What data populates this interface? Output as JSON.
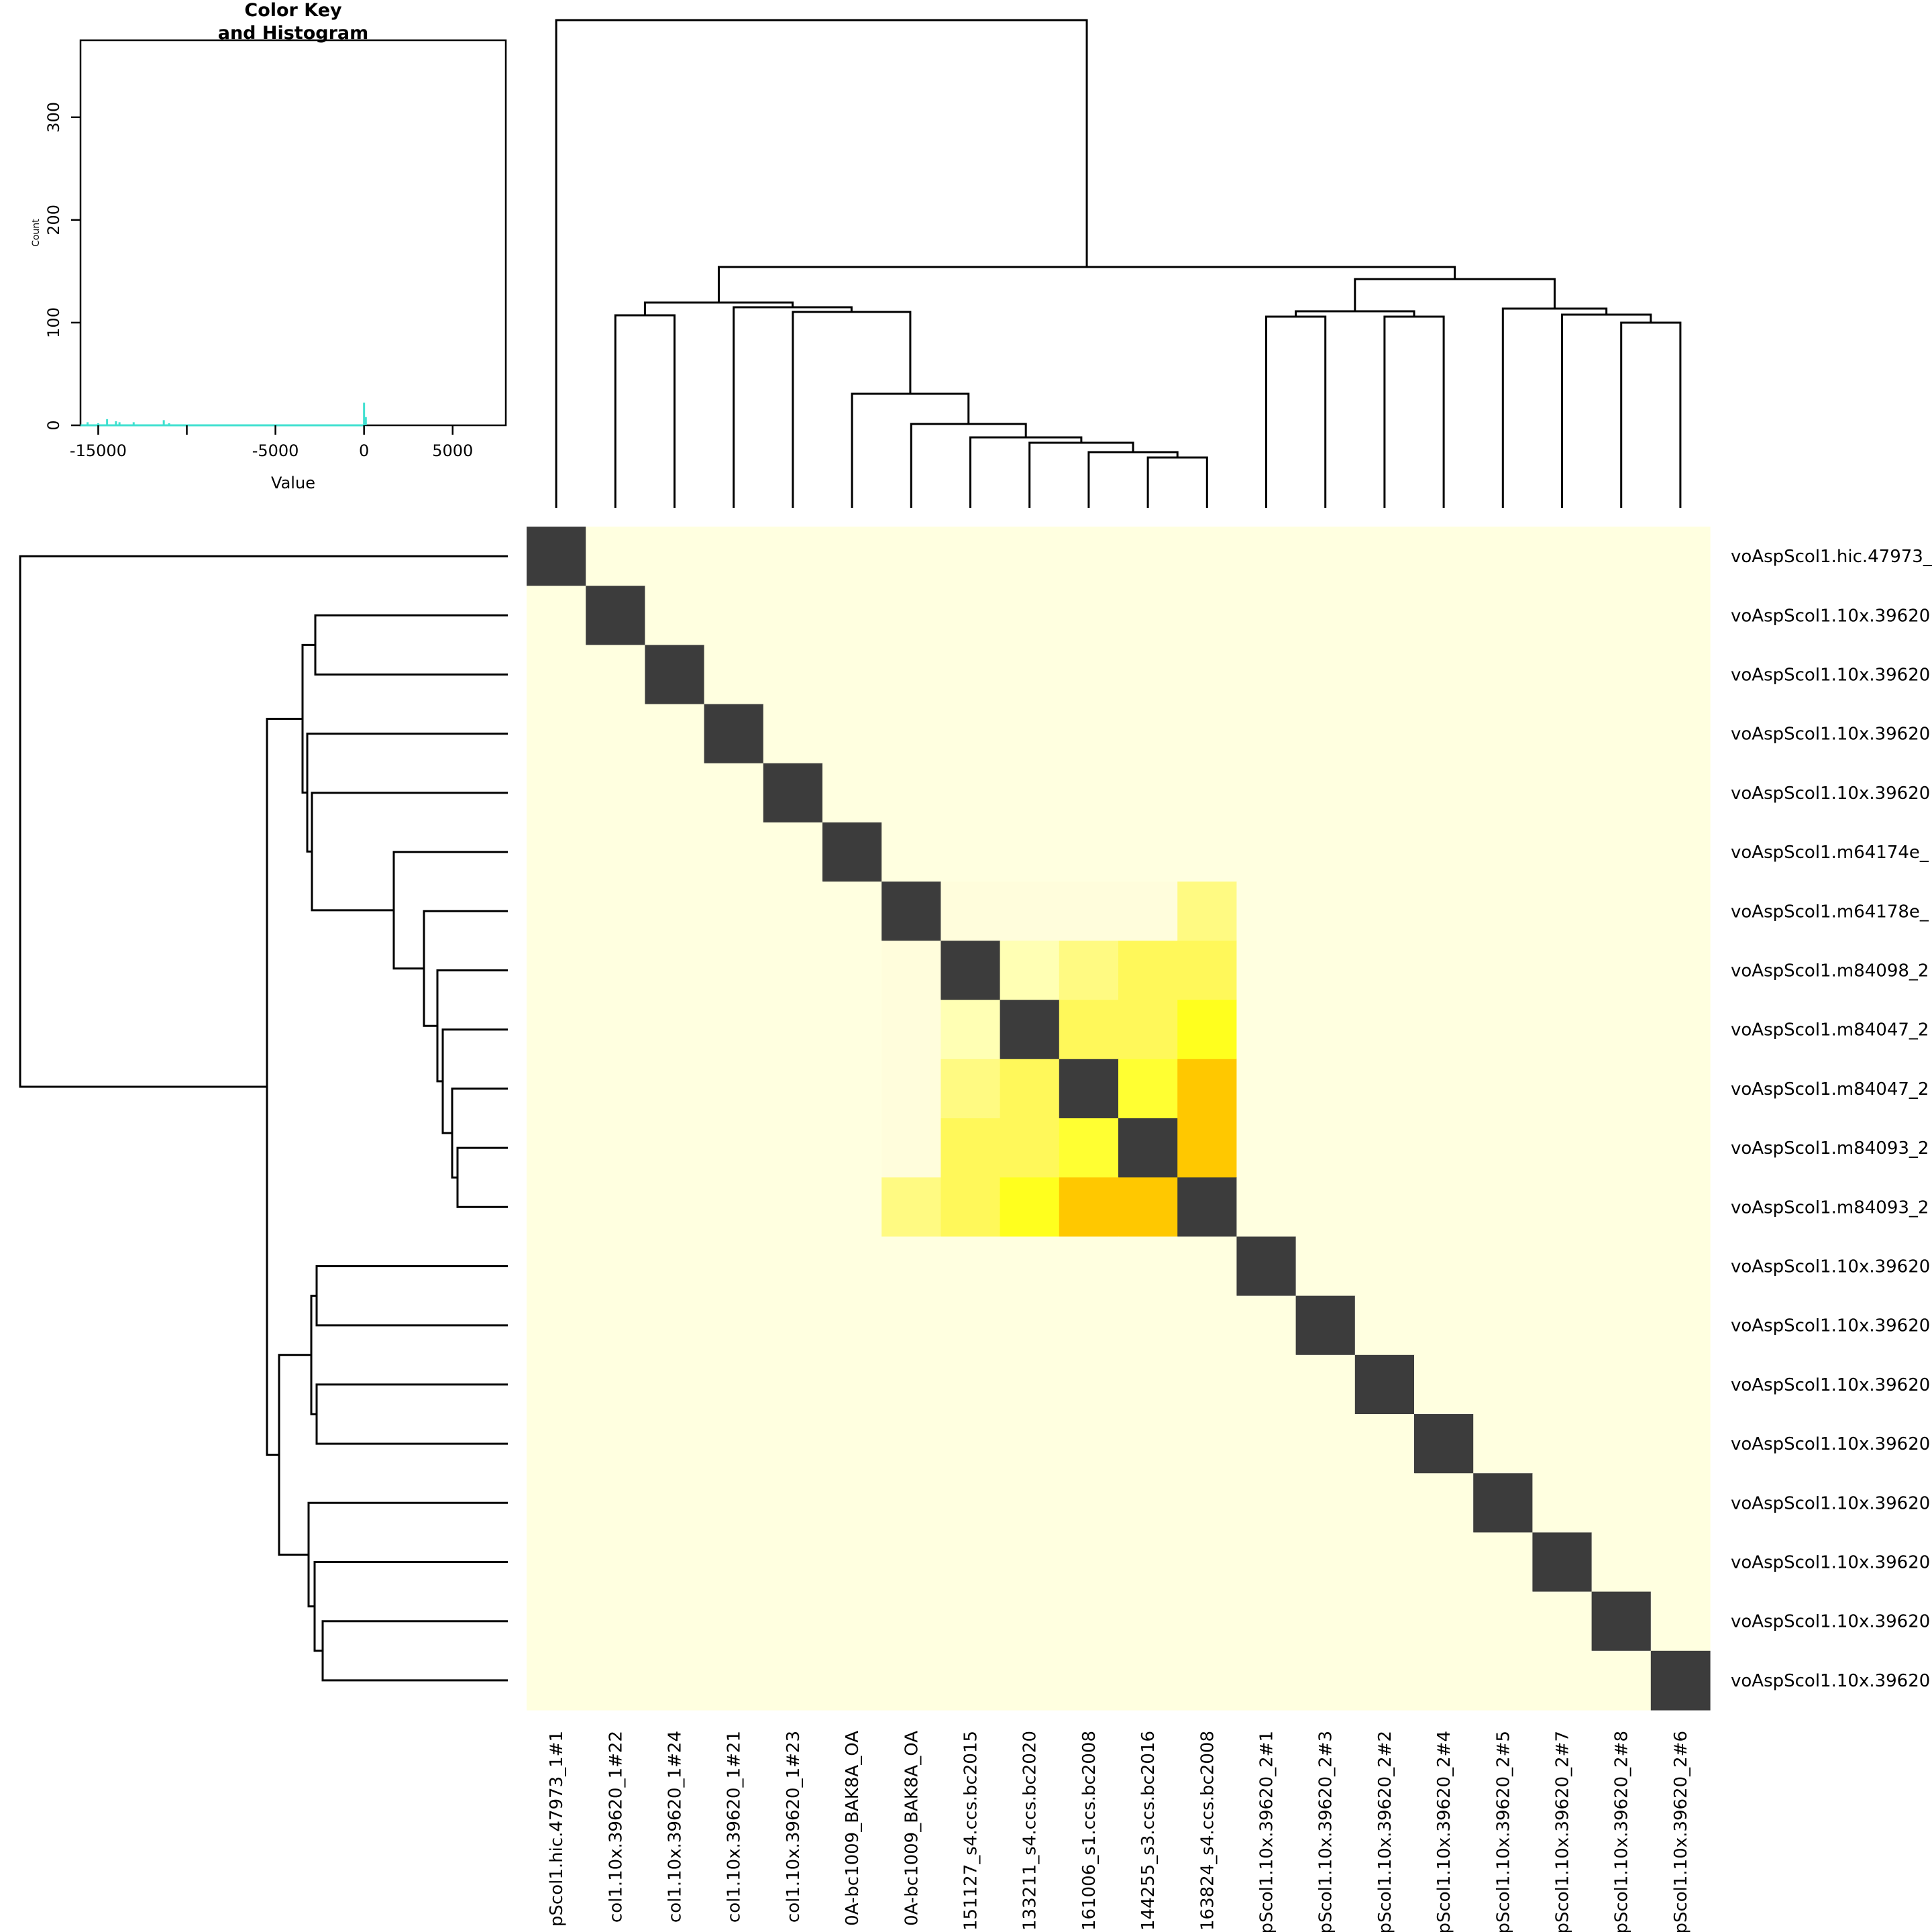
{
  "chart_data": [
    {
      "type": "histogram",
      "title": "Color Key\nand Histogram",
      "xlabel": "Value",
      "ylabel": "Count",
      "x_ticks": [
        -15000,
        -10000,
        -5000,
        0,
        5000
      ],
      "x_tick_labels": [
        "-15000",
        "",
        "-5000",
        "0",
        "5000"
      ],
      "y_ticks": [
        0,
        100,
        200,
        300
      ],
      "y_tick_labels": [
        "0",
        "100",
        "200",
        "300"
      ],
      "xlim": [
        -16000,
        8000
      ],
      "ylim": [
        0,
        375
      ],
      "bars_color": "#40e0d0",
      "bars": [
        {
          "x": -15600,
          "count": 3
        },
        {
          "x": -15000,
          "count": 2
        },
        {
          "x": -14500,
          "count": 6
        },
        {
          "x": -14000,
          "count": 4
        },
        {
          "x": -13800,
          "count": 3
        },
        {
          "x": -13000,
          "count": 3
        },
        {
          "x": -11300,
          "count": 5
        },
        {
          "x": -11000,
          "count": 2
        },
        {
          "x": 0,
          "count": 22
        },
        {
          "x": 100,
          "count": 8
        }
      ]
    },
    {
      "type": "heatmap",
      "row_labels": [
        "voAspScol1.hic.47973_",
        "voAspScol1.10x.39620",
        "voAspScol1.10x.39620",
        "voAspScol1.10x.39620",
        "voAspScol1.10x.39620",
        "voAspScol1.m64174e_",
        "voAspScol1.m64178e_",
        "voAspScol1.m84098_2",
        "voAspScol1.m84047_2",
        "voAspScol1.m84047_2",
        "voAspScol1.m84093_2",
        "voAspScol1.m84093_2",
        "voAspScol1.10x.39620",
        "voAspScol1.10x.39620",
        "voAspScol1.10x.39620",
        "voAspScol1.10x.39620",
        "voAspScol1.10x.39620",
        "voAspScol1.10x.39620",
        "voAspScol1.10x.39620",
        "voAspScol1.10x.39620"
      ],
      "col_labels": [
        "pScol1.hic.47973_1#1",
        "col1.10x.39620_1#22",
        "col1.10x.39620_1#24",
        "col1.10x.39620_1#21",
        "col1.10x.39620_1#23",
        "0A-bc1009_BAK8A_OA",
        "0A-bc1009_BAK8A_OA",
        "151127_s4.ccs.bc2015",
        "133211_s4.ccs.bc2020",
        "161006_s1.ccs.bc2008",
        "144255_s3.ccs.bc2016",
        "163824_s4.ccs.bc2008",
        "pScol1.10x.39620_2#1",
        "pScol1.10x.39620_2#3",
        "pScol1.10x.39620_2#2",
        "pScol1.10x.39620_2#4",
        "pScol1.10x.39620_2#5",
        "pScol1.10x.39620_2#7",
        "pScol1.10x.39620_2#8",
        "pScol1.10x.39620_2#6"
      ],
      "palette": {
        "diagonal": "#3c3c3c",
        "background": "#ffffe0",
        "level_1": "#fffddc",
        "level_2": "#ffffb4",
        "level_3": "#fffa82",
        "level_4": "#fff85a",
        "level_5": "#ffff32",
        "level_6": "#ffff1e",
        "level_7": "#ffc800"
      },
      "colored_cells": [
        [
          6,
          7,
          1
        ],
        [
          6,
          8,
          1
        ],
        [
          6,
          9,
          1
        ],
        [
          6,
          10,
          1
        ],
        [
          6,
          11,
          3
        ],
        [
          7,
          6,
          1
        ],
        [
          7,
          8,
          2
        ],
        [
          7,
          9,
          3
        ],
        [
          7,
          10,
          4
        ],
        [
          7,
          11,
          4
        ],
        [
          8,
          6,
          1
        ],
        [
          8,
          7,
          2
        ],
        [
          8,
          9,
          4
        ],
        [
          8,
          10,
          4
        ],
        [
          8,
          11,
          6
        ],
        [
          9,
          6,
          1
        ],
        [
          9,
          7,
          3
        ],
        [
          9,
          8,
          4
        ],
        [
          9,
          10,
          5
        ],
        [
          9,
          11,
          7
        ],
        [
          10,
          6,
          1
        ],
        [
          10,
          7,
          4
        ],
        [
          10,
          8,
          4
        ],
        [
          10,
          9,
          5
        ],
        [
          10,
          11,
          7
        ],
        [
          11,
          6,
          3
        ],
        [
          11,
          7,
          4
        ],
        [
          11,
          8,
          6
        ],
        [
          11,
          9,
          7
        ],
        [
          11,
          10,
          7
        ]
      ]
    }
  ]
}
